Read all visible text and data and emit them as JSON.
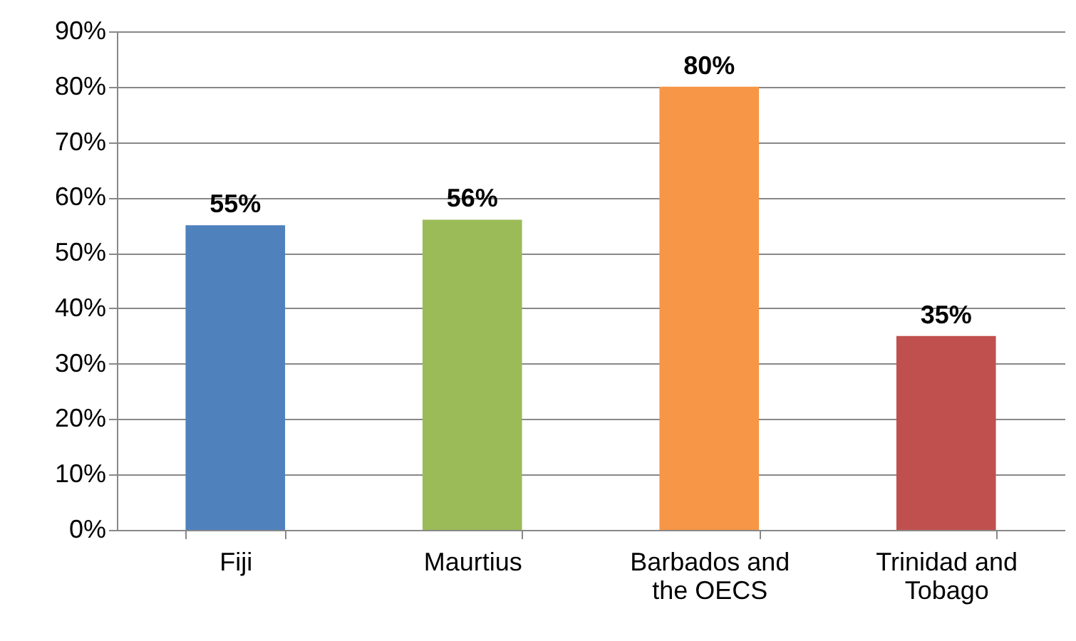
{
  "chart_data": {
    "type": "bar",
    "categories": [
      "Fiji",
      "Maurtius",
      "Barbados and the OECS",
      "Trinidad and Tobago"
    ],
    "values": [
      55,
      56,
      80,
      35
    ],
    "colors": [
      "#4f81bd",
      "#9bbb59",
      "#f79646",
      "#c0504d"
    ],
    "value_labels": [
      "55%",
      "56%",
      "80%",
      "35%"
    ],
    "ylim": [
      0,
      90
    ],
    "yticks": [
      {
        "value": 0,
        "label": "0%"
      },
      {
        "value": 10,
        "label": "10%"
      },
      {
        "value": 20,
        "label": "20%"
      },
      {
        "value": 30,
        "label": "30%"
      },
      {
        "value": 40,
        "label": "40%"
      },
      {
        "value": 50,
        "label": "50%"
      },
      {
        "value": 60,
        "label": "60%"
      },
      {
        "value": 70,
        "label": "70%"
      },
      {
        "value": 80,
        "label": "80%"
      },
      {
        "value": 90,
        "label": "90%"
      }
    ],
    "grid": "y"
  }
}
